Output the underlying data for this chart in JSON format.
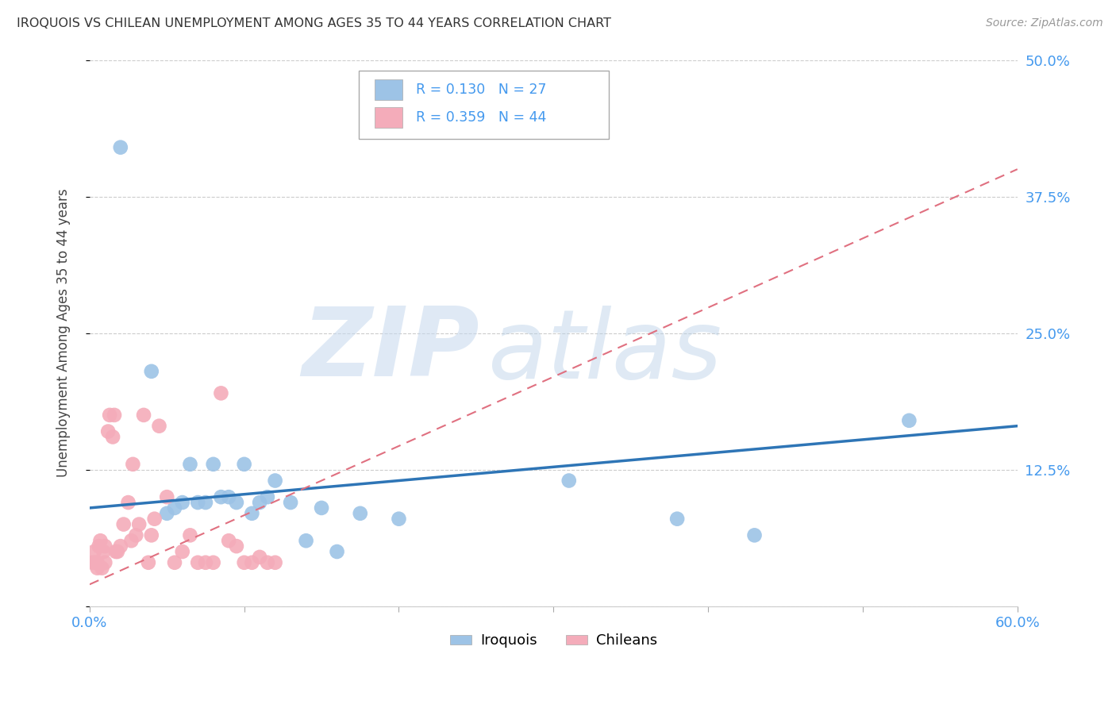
{
  "title": "IROQUOIS VS CHILEAN UNEMPLOYMENT AMONG AGES 35 TO 44 YEARS CORRELATION CHART",
  "source": "Source: ZipAtlas.com",
  "ylabel": "Unemployment Among Ages 35 to 44 years",
  "xlim": [
    0.0,
    0.6
  ],
  "ylim": [
    0.0,
    0.5
  ],
  "xticks": [
    0.0,
    0.1,
    0.2,
    0.3,
    0.4,
    0.5,
    0.6
  ],
  "xticklabels": [
    "0.0%",
    "",
    "",
    "",
    "",
    "",
    "60.0%"
  ],
  "ytick_vals": [
    0.0,
    0.125,
    0.25,
    0.375,
    0.5
  ],
  "ytick_labels": [
    "",
    "12.5%",
    "25.0%",
    "37.5%",
    "50.0%"
  ],
  "legend_r_iroquois": "R = 0.130",
  "legend_n_iroquois": "N = 27",
  "legend_r_chileans": "R = 0.359",
  "legend_n_chileans": "N = 44",
  "iroquois_color": "#9DC3E6",
  "chileans_color": "#F4ACBA",
  "iroquois_line_color": "#2E75B6",
  "chileans_line_color": "#E07080",
  "grid_color": "#CCCCCC",
  "watermark_zip": "ZIP",
  "watermark_atlas": "atlas",
  "watermark_color_zip": "#C5D8EE",
  "watermark_color_atlas": "#B8D0E8",
  "background_color": "#FFFFFF",
  "iroquois_x": [
    0.02,
    0.04,
    0.05,
    0.055,
    0.06,
    0.065,
    0.07,
    0.075,
    0.08,
    0.085,
    0.09,
    0.095,
    0.1,
    0.105,
    0.11,
    0.115,
    0.12,
    0.13,
    0.14,
    0.15,
    0.16,
    0.175,
    0.2,
    0.31,
    0.38,
    0.43,
    0.53
  ],
  "iroquois_y": [
    0.42,
    0.215,
    0.085,
    0.09,
    0.095,
    0.13,
    0.095,
    0.095,
    0.13,
    0.1,
    0.1,
    0.095,
    0.13,
    0.085,
    0.095,
    0.1,
    0.115,
    0.095,
    0.06,
    0.09,
    0.05,
    0.085,
    0.08,
    0.115,
    0.08,
    0.065,
    0.17
  ],
  "chileans_x": [
    0.002,
    0.003,
    0.004,
    0.005,
    0.005,
    0.006,
    0.007,
    0.008,
    0.009,
    0.01,
    0.01,
    0.012,
    0.013,
    0.015,
    0.016,
    0.017,
    0.018,
    0.02,
    0.022,
    0.025,
    0.027,
    0.028,
    0.03,
    0.032,
    0.035,
    0.038,
    0.04,
    0.042,
    0.045,
    0.05,
    0.055,
    0.06,
    0.065,
    0.07,
    0.075,
    0.08,
    0.085,
    0.09,
    0.095,
    0.1,
    0.105,
    0.11,
    0.115,
    0.12
  ],
  "chileans_y": [
    0.04,
    0.05,
    0.04,
    0.035,
    0.04,
    0.055,
    0.06,
    0.035,
    0.05,
    0.04,
    0.055,
    0.16,
    0.175,
    0.155,
    0.175,
    0.05,
    0.05,
    0.055,
    0.075,
    0.095,
    0.06,
    0.13,
    0.065,
    0.075,
    0.175,
    0.04,
    0.065,
    0.08,
    0.165,
    0.1,
    0.04,
    0.05,
    0.065,
    0.04,
    0.04,
    0.04,
    0.195,
    0.06,
    0.055,
    0.04,
    0.04,
    0.045,
    0.04,
    0.04
  ],
  "iroquois_line_x0": 0.0,
  "iroquois_line_y0": 0.09,
  "iroquois_line_x1": 0.6,
  "iroquois_line_y1": 0.165,
  "chileans_line_x0": 0.0,
  "chileans_line_y0": 0.02,
  "chileans_line_x1": 0.6,
  "chileans_line_y1": 0.4
}
